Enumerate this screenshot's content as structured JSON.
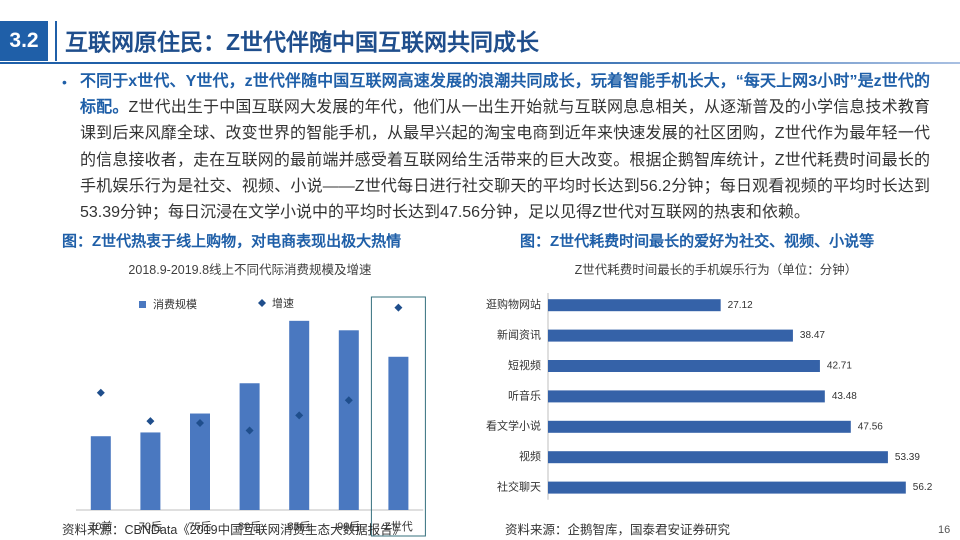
{
  "header": {
    "section_number": "3.2",
    "title": "互联网原住民：Z世代伴随中国互联网共同成长"
  },
  "body": {
    "bullet": "•",
    "bold_lead": "不同于x世代、Y世代，z世代伴随中国互联网高速发展的浪潮共同成长，玩着智能手机长大，“每天上网3小时”是z世代的标配。",
    "text": "Z世代出生于中国互联网大发展的年代，他们从一出生开始就与互联网息息相关，从逐渐普及的小学信息技术教育课到后来风靡全球、改变世界的智能手机，从最早兴起的淘宝电商到近年来快速发展的社区团购，Z世代作为最年轻一代的信息接收者，走在互联网的最前端并感受着互联网给生活带来的巨大改变。根据企鹅智库统计，Z世代耗费时间最长的手机娱乐行为是社交、视频、小说——Z世代每日进行社交聊天的平均时长达到56.2分钟；每日观看视频的平均时长达到53.39分钟；每日沉浸在文学小说中的平均时长达到47.56分钟，足以见得Z世代对互联网的热衷和依赖。"
  },
  "captions": {
    "left": "图：Z世代热衷于线上购物，对电商表现出极大热情",
    "right": "图：Z世代耗费时间最长的爱好为社交、视频、小说等"
  },
  "sources": {
    "left": "资料来源：CBNData《2019中国互联网消费生态大数据报告》",
    "right": "资料来源：企鹅智库，国泰君安证券研究"
  },
  "page_number": "16",
  "colors": {
    "brand_blue": "#1f5fa8",
    "title_blue": "#1f4e8c",
    "body_text": "#333333",
    "left_bar": "#4a78c0",
    "growth_marker": "#1f4e8c",
    "right_bar": "#3562a8",
    "highlight_box": "#35707e",
    "axis": "#bfbfbf"
  },
  "chart_data": [
    {
      "type": "bar",
      "title": "2018.9-2019.8线上不同代际消费规模及增速",
      "categories": [
        "70前",
        "70后",
        "75后",
        "80后",
        "85后",
        "90后",
        "Z世代"
      ],
      "series": [
        {
          "name": "消费规模",
          "type": "bar",
          "values": [
            39,
            41,
            51,
            67,
            100,
            95,
            81
          ]
        },
        {
          "name": "增速",
          "type": "scatter",
          "values": [
            62,
            47,
            46,
            42,
            50,
            58,
            107
          ]
        }
      ],
      "ylim": [
        0,
        120
      ],
      "legend": "top",
      "grid": false,
      "highlighted_category": "Z世代"
    },
    {
      "type": "bar",
      "orientation": "horizontal",
      "title": "Z世代耗费时间最长的手机娱乐行为（单位：分钟）",
      "categories": [
        "逛购物网站",
        "新闻资讯",
        "短视频",
        "听音乐",
        "看文学小说",
        "视频",
        "社交聊天"
      ],
      "values": [
        27.12,
        38.47,
        42.71,
        43.48,
        47.56,
        53.39,
        56.2
      ],
      "xlim": [
        0,
        60
      ],
      "grid": false
    }
  ]
}
